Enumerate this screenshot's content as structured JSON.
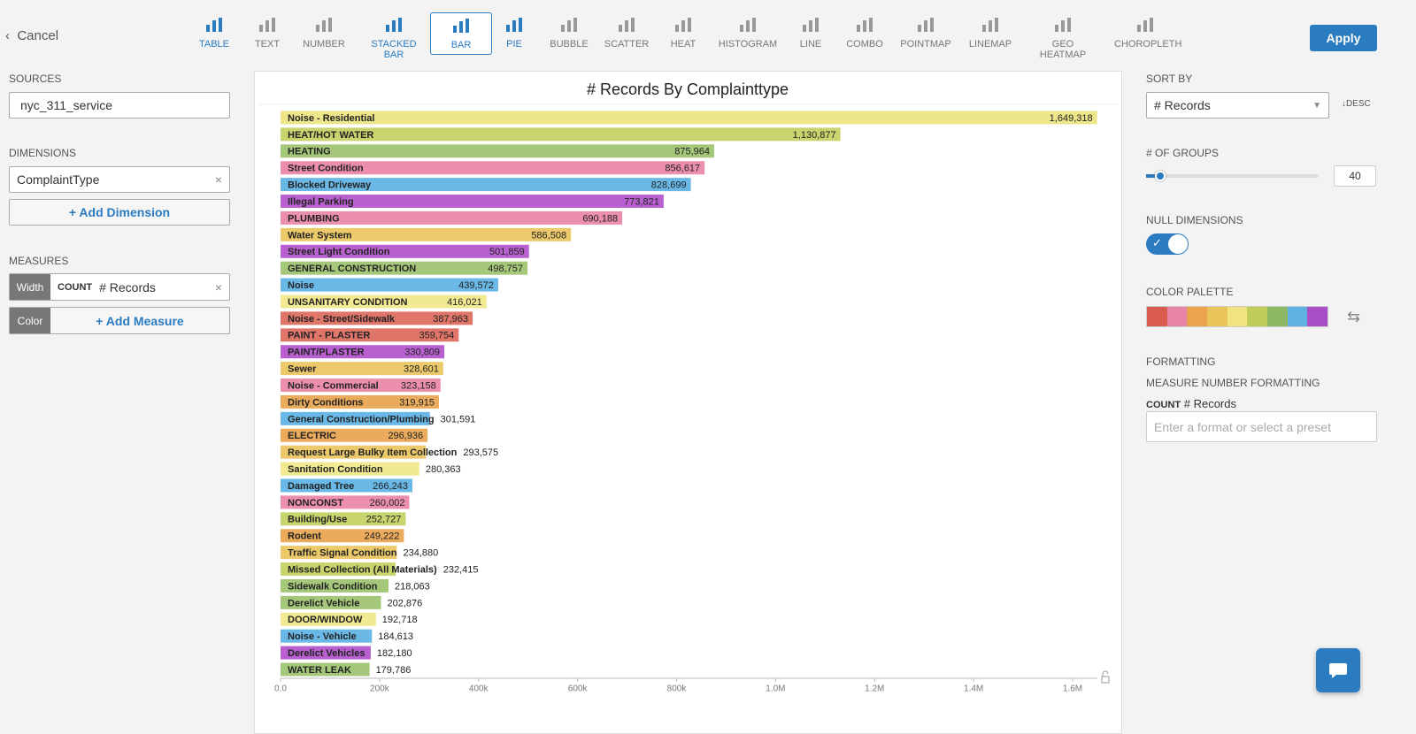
{
  "toolbar": {
    "cancel": "Cancel",
    "chart_types": [
      "TABLE",
      "TEXT",
      "NUMBER",
      "STACKED BAR",
      "BAR",
      "PIE",
      "BUBBLE",
      "SCATTER",
      "HEAT",
      "HISTOGRAM",
      "LINE",
      "COMBO",
      "POINTMAP",
      "LINEMAP",
      "GEO HEATMAP",
      "CHOROPLETH"
    ],
    "apply": "Apply"
  },
  "sidebar": {
    "sources_label": "SOURCES",
    "source": "nyc_311_service",
    "dimensions_label": "DIMENSIONS",
    "dimension": "ComplaintType",
    "add_dimension": "+ Add Dimension",
    "measures_label": "MEASURES",
    "width_role": "Width",
    "measure_agg": "COUNT",
    "measure_name": "# Records",
    "color_role": "Color",
    "add_measure": "+ Add Measure"
  },
  "settings": {
    "sort_by_label": "SORT BY",
    "sort_by": "# Records",
    "sort_dir": "DESC",
    "groups_label": "# OF GROUPS",
    "groups": 40,
    "null_dimensions_label": "NULL DIMENSIONS",
    "color_palette_label": "COLOR PALETTE",
    "palette": [
      "#d95c4e",
      "#e884a5",
      "#e9a44c",
      "#e9c45a",
      "#f0e47f",
      "#bfcd58",
      "#8fb865",
      "#5fb3e3",
      "#a94fc6"
    ],
    "formatting_label": "FORMATTING",
    "measure_formatting_label": "MEASURE NUMBER FORMATTING",
    "format_agg": "COUNT",
    "format_measure": "# Records",
    "format_placeholder": "Enter a format or select a preset"
  },
  "chart_data": {
    "type": "bar",
    "orientation": "horizontal",
    "title": "# Records By Complainttype",
    "categories": [
      "Noise - Residential",
      "HEAT/HOT WATER",
      "HEATING",
      "Street Condition",
      "Blocked Driveway",
      "Illegal Parking",
      "PLUMBING",
      "Water System",
      "Street Light Condition",
      "GENERAL CONSTRUCTION",
      "Noise",
      "UNSANITARY CONDITION",
      "Noise - Street/Sidewalk",
      "PAINT - PLASTER",
      "PAINT/PLASTER",
      "Sewer",
      "Noise - Commercial",
      "Dirty Conditions",
      "General Construction/Plumbing",
      "ELECTRIC",
      "Request Large Bulky Item Collection",
      "Sanitation Condition",
      "Damaged Tree",
      "NONCONST",
      "Building/Use",
      "Rodent",
      "Traffic Signal Condition",
      "Missed Collection (All Materials)",
      "Sidewalk Condition",
      "Derelict Vehicle",
      "DOOR/WINDOW",
      "Noise - Vehicle",
      "Derelict Vehicles",
      "WATER LEAK"
    ],
    "values": [
      1649318,
      1130877,
      875964,
      856617,
      828699,
      773821,
      690188,
      586508,
      501859,
      498757,
      439572,
      416021,
      387963,
      359754,
      330809,
      328601,
      323158,
      319915,
      301591,
      296936,
      293575,
      280363,
      266243,
      260002,
      252727,
      249222,
      234880,
      232415,
      218063,
      202876,
      192718,
      184613,
      182180,
      179786
    ],
    "value_labels": [
      "1,649,318",
      "1,130,877",
      "875,964",
      "856,617",
      "828,699",
      "773,821",
      "690,188",
      "586,508",
      "501,859",
      "498,757",
      "439,572",
      "416,021",
      "387,963",
      "359,754",
      "330,809",
      "328,601",
      "323,158",
      "319,915",
      "301,591",
      "296,936",
      "293,575",
      "280,363",
      "266,243",
      "260,002",
      "252,727",
      "249,222",
      "234,880",
      "232,415",
      "218,063",
      "202,876",
      "192,718",
      "184,613",
      "182,180",
      "179,786"
    ],
    "colors": [
      "#ede58a",
      "#c8d46e",
      "#a5c77a",
      "#eb8fac",
      "#6ab8e6",
      "#b860cf",
      "#eb8fac",
      "#ecc96a",
      "#b860cf",
      "#a5c77a",
      "#6ab8e6",
      "#f2ea92",
      "#e0766a",
      "#e0766a",
      "#b860cf",
      "#ecc96a",
      "#eb8fac",
      "#ebab5c",
      "#6ab8e6",
      "#ebab5c",
      "#ecc96a",
      "#f2ea92",
      "#6ab8e6",
      "#eb8fac",
      "#c8d46e",
      "#ebab5c",
      "#ecc96a",
      "#c8d46e",
      "#a5c77a",
      "#a5c77a",
      "#f2ea92",
      "#6ab8e6",
      "#b860cf",
      "#a5c77a"
    ],
    "xlim": [
      0,
      1650000
    ],
    "xticks": [
      {
        "value": 0,
        "label": "0.0"
      },
      {
        "value": 200000,
        "label": "200k"
      },
      {
        "value": 400000,
        "label": "400k"
      },
      {
        "value": 600000,
        "label": "600k"
      },
      {
        "value": 800000,
        "label": "800k"
      },
      {
        "value": 1000000,
        "label": "1.0M"
      },
      {
        "value": 1200000,
        "label": "1.2M"
      },
      {
        "value": 1400000,
        "label": "1.4M"
      },
      {
        "value": 1600000,
        "label": "1.6M"
      }
    ]
  }
}
